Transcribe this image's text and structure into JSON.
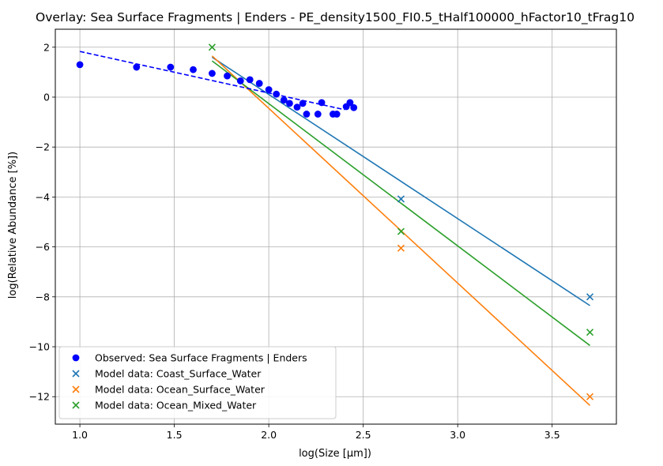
{
  "chart_data": {
    "type": "scatter",
    "title": "Overlay: Sea Surface Fragments | Enders - PE_density1500_FI0.5_tHalf100000_hFactor10_tFrag10",
    "xlabel": "log(Size [μm])",
    "ylabel": "log(Relative Abundance [%])",
    "xlim": [
      0.87,
      3.84
    ],
    "ylim": [
      -13.1,
      2.72
    ],
    "xticks": [
      1.0,
      1.5,
      2.0,
      2.5,
      3.0,
      3.5
    ],
    "xtick_labels": [
      "1.0",
      "1.5",
      "2.0",
      "2.5",
      "3.0",
      "3.5"
    ],
    "yticks": [
      2,
      0,
      -2,
      -4,
      -6,
      -8,
      -10,
      -12
    ],
    "ytick_labels": [
      "2",
      "0",
      "−2",
      "−4",
      "−6",
      "−8",
      "−10",
      "−12"
    ],
    "grid": true,
    "legend_position": "lower-left",
    "observed": {
      "name": "Observed: Sea Surface Fragments | Enders",
      "color": "#0000ff",
      "marker": "circle",
      "points": [
        [
          1.0,
          1.3
        ],
        [
          1.3,
          1.2
        ],
        [
          1.48,
          1.2
        ],
        [
          1.6,
          1.1
        ],
        [
          1.7,
          0.95
        ],
        [
          1.78,
          0.85
        ],
        [
          1.85,
          0.65
        ],
        [
          1.9,
          0.7
        ],
        [
          1.95,
          0.55
        ],
        [
          2.0,
          0.3
        ],
        [
          2.04,
          0.12
        ],
        [
          2.08,
          -0.12
        ],
        [
          2.11,
          -0.25
        ],
        [
          2.15,
          -0.4
        ],
        [
          2.18,
          -0.25
        ],
        [
          2.2,
          -0.68
        ],
        [
          2.26,
          -0.68
        ],
        [
          2.28,
          -0.22
        ],
        [
          2.34,
          -0.68
        ],
        [
          2.36,
          -0.68
        ],
        [
          2.41,
          -0.38
        ],
        [
          2.43,
          -0.22
        ],
        [
          2.45,
          -0.42
        ]
      ],
      "fit_line": {
        "x": [
          1.0,
          2.4
        ],
        "y": [
          1.83,
          -0.5
        ],
        "style": "dashed"
      }
    },
    "series": [
      {
        "name": "Model data: Coast_Surface_Water",
        "color": "#1f77b4",
        "marker": "x",
        "points": [
          [
            2.7,
            -4.08
          ],
          [
            3.7,
            -8.0
          ]
        ],
        "fit_line": {
          "x": [
            1.7,
            3.7
          ],
          "y": [
            1.6,
            -8.35
          ]
        }
      },
      {
        "name": "Model data: Ocean_Surface_Water",
        "color": "#ff7f0e",
        "marker": "x",
        "points": [
          [
            2.7,
            -6.05
          ],
          [
            3.7,
            -12.0
          ]
        ],
        "fit_line": {
          "x": [
            1.7,
            3.7
          ],
          "y": [
            1.65,
            -12.35
          ]
        }
      },
      {
        "name": "Model data: Ocean_Mixed_Water",
        "color": "#2ca02c",
        "marker": "x",
        "points": [
          [
            1.7,
            2.0
          ],
          [
            2.7,
            -5.38
          ],
          [
            3.7,
            -9.42
          ]
        ],
        "fit_line": {
          "x": [
            1.7,
            3.7
          ],
          "y": [
            1.45,
            -9.95
          ]
        }
      }
    ]
  }
}
